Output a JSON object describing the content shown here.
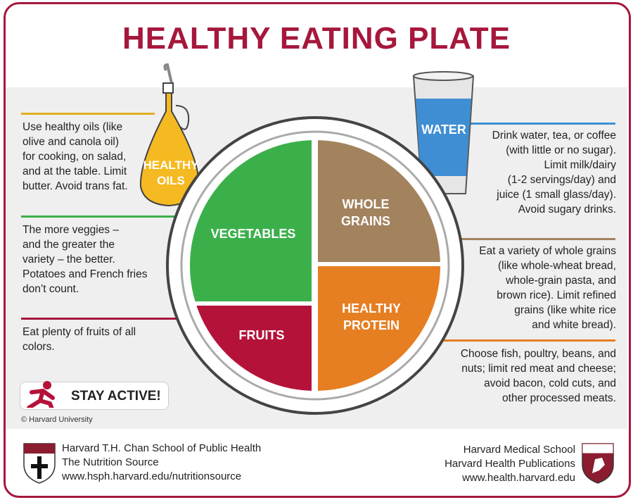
{
  "title": "HEALTHY EATING PLATE",
  "colors": {
    "accent": "#a6173c",
    "oils": "#f5b922",
    "vegetables": "#3bb04a",
    "grains": "#a3825e",
    "protein": "#e67e22",
    "fruits": "#b5123a",
    "water": "#3f8ed4"
  },
  "oils": {
    "label_1": "HEALTHY",
    "label_2": "OILS",
    "text": [
      "Use healthy oils (like",
      "olive and canola oil)",
      "for cooking, on salad,",
      "and at the table. Limit",
      "butter. Avoid trans fat."
    ]
  },
  "water": {
    "label": "WATER",
    "text": [
      "Drink water, tea, or coffee",
      "(with little or no sugar).",
      "Limit milk/dairy",
      "(1-2 servings/day) and",
      "juice (1 small glass/day).",
      "Avoid sugary drinks."
    ]
  },
  "vegetables": {
    "label": "VEGETABLES",
    "text": [
      "The more veggies –",
      "and the greater the",
      "variety – the better.",
      "Potatoes and French fries",
      "don’t count."
    ]
  },
  "grains": {
    "label_1": "WHOLE",
    "label_2": "GRAINS",
    "text": [
      "Eat a variety of whole grains",
      "(like whole-wheat bread,",
      "whole-grain pasta, and",
      "brown rice). Limit refined",
      "grains (like white rice",
      "and white bread)."
    ]
  },
  "fruits": {
    "label": "FRUITS",
    "text": [
      "Eat plenty of fruits of all",
      "colors."
    ]
  },
  "protein": {
    "label_1": "HEALTHY",
    "label_2": "PROTEIN",
    "text": [
      "Choose fish, poultry, beans, and",
      "nuts;  limit red meat and cheese;",
      "avoid bacon, cold cuts,  and",
      "other processed meats."
    ]
  },
  "stay_active": "STAY ACTIVE!",
  "copyright": "© Harvard University",
  "footer_left": [
    "Harvard T.H. Chan School of Public Health",
    "The Nutrition Source",
    "www.hsph.harvard.edu/nutritionsource"
  ],
  "footer_right": [
    "Harvard Medical School",
    "Harvard Health Publications",
    "www.health.harvard.edu"
  ]
}
